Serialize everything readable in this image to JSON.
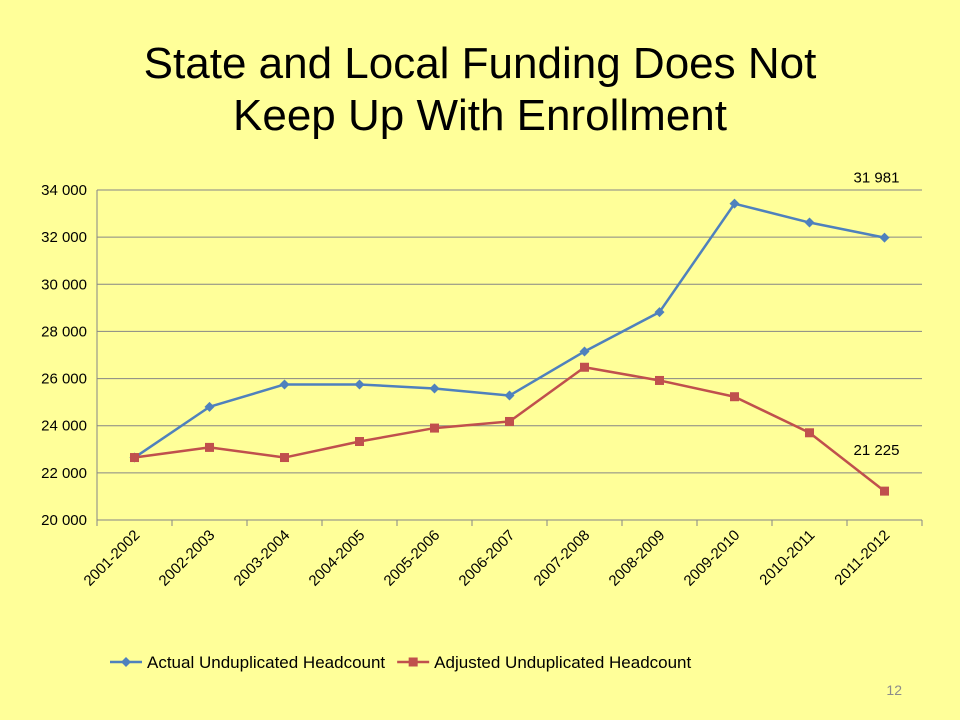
{
  "slide": {
    "title_line1": "State and Local Funding Does Not",
    "title_line2": "Keep Up With Enrollment",
    "page_number": "12"
  },
  "chart_data": {
    "type": "line",
    "categories": [
      "2001-2002",
      "2002-2003",
      "2003-2004",
      "2004-2005",
      "2005-2006",
      "2006-2007",
      "2007-2008",
      "2008-2009",
      "2009-2010",
      "2010-2011",
      "2011-2012"
    ],
    "series": [
      {
        "name": "Actual Unduplicated Headcount",
        "color": "#4F81BD",
        "marker": "diamond",
        "values": [
          22650,
          24800,
          25750,
          25750,
          25580,
          25280,
          27150,
          28820,
          33420,
          32620,
          31981
        ]
      },
      {
        "name": "Adjusted Unduplicated Headcount",
        "color": "#C0504D",
        "marker": "square",
        "values": [
          22650,
          23080,
          22650,
          23330,
          23900,
          24180,
          26480,
          25920,
          25230,
          23700,
          21225
        ]
      }
    ],
    "annotations": [
      {
        "series": 0,
        "index": 10,
        "text": "31 981"
      },
      {
        "series": 1,
        "index": 10,
        "text": "21 225"
      }
    ],
    "ylim": [
      20000,
      34000
    ],
    "yticks": [
      20000,
      22000,
      24000,
      26000,
      28000,
      30000,
      32000,
      34000
    ],
    "ytick_labels": [
      "20 000",
      "22 000",
      "24 000",
      "26 000",
      "28 000",
      "30 000",
      "32 000",
      "34 000"
    ],
    "grid": true,
    "legend": "bottom",
    "title": "",
    "xlabel": "",
    "ylabel": ""
  }
}
